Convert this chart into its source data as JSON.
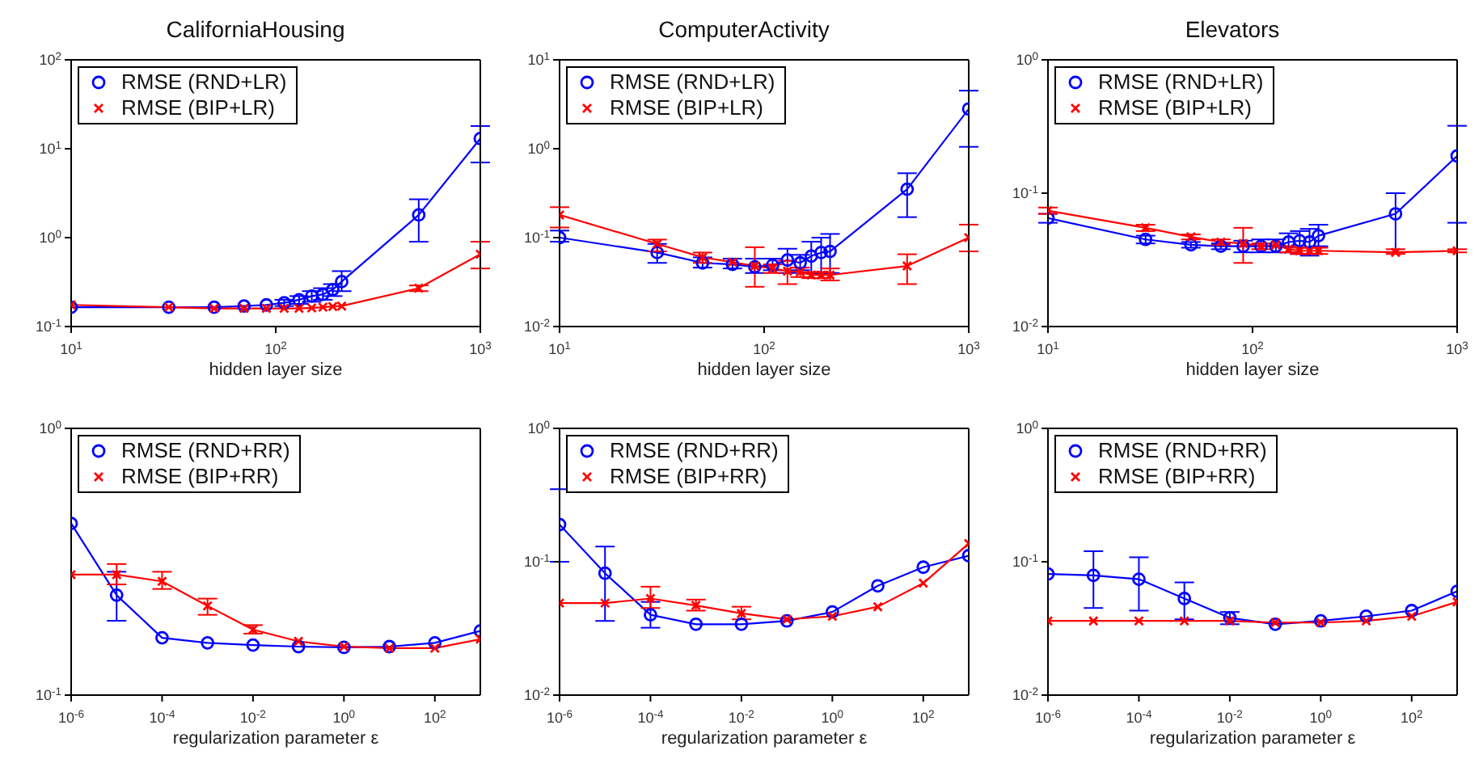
{
  "chart_data": [
    {
      "type": "line",
      "title": "CaliforniaHousing",
      "xlabel": "hidden layer size",
      "log": "xy",
      "legend": "top left",
      "x": [
        10,
        30,
        50,
        70,
        90,
        110,
        130,
        150,
        170,
        190,
        210,
        500,
        1000
      ],
      "xlim": [
        10,
        1000
      ],
      "xticks": [
        {
          "value": 10,
          "label": "10$^{1}$"
        },
        {
          "value": 100,
          "label": "10$^{2}$"
        },
        {
          "value": 1000,
          "label": "10$^{3}$"
        }
      ],
      "ylim": [
        0.1,
        100
      ],
      "yticks": [
        {
          "value": 0.1,
          "label": "10$^{-1}$"
        },
        {
          "value": 1,
          "label": "10$^{0}$"
        },
        {
          "value": 10,
          "label": "10$^{1}$"
        },
        {
          "value": 100,
          "label": "10$^{2}$"
        }
      ],
      "series": [
        {
          "name": "RMSE (RND+LR)",
          "color": "#0000ff",
          "marker": "circle",
          "values": [
            0.165,
            0.165,
            0.165,
            0.17,
            0.175,
            0.185,
            0.2,
            0.22,
            0.23,
            0.26,
            0.32,
            1.8,
            13
          ],
          "errors": [
            null,
            null,
            null,
            null,
            null,
            [
              0.17,
              0.2
            ],
            [
              0.18,
              0.22
            ],
            [
              0.19,
              0.25
            ],
            [
              0.2,
              0.27
            ],
            [
              0.22,
              0.3
            ],
            [
              0.25,
              0.42
            ],
            [
              0.9,
              2.7
            ],
            [
              7,
              18
            ]
          ]
        },
        {
          "name": "RMSE (BIP+LR)",
          "color": "#ff0000",
          "marker": "cross",
          "values": [
            0.175,
            0.165,
            0.16,
            0.16,
            0.16,
            0.16,
            0.16,
            0.162,
            0.165,
            0.168,
            0.17,
            0.27,
            0.65
          ],
          "errors": [
            null,
            null,
            null,
            null,
            null,
            null,
            null,
            null,
            null,
            null,
            null,
            [
              0.25,
              0.29
            ],
            [
              0.45,
              0.9
            ]
          ]
        }
      ]
    },
    {
      "type": "line",
      "title": "ComputerActivity",
      "xlabel": "hidden layer size",
      "log": "xy",
      "legend": "top left",
      "x": [
        10,
        30,
        50,
        70,
        90,
        110,
        130,
        150,
        170,
        190,
        210,
        500,
        1000
      ],
      "xlim": [
        10,
        1000
      ],
      "xticks": [
        {
          "value": 10,
          "label": "10$^{1}$"
        },
        {
          "value": 100,
          "label": "10$^{2}$"
        },
        {
          "value": 1000,
          "label": "10$^{3}$"
        }
      ],
      "ylim": [
        0.01,
        10
      ],
      "yticks": [
        {
          "value": 0.01,
          "label": "10$^{-2}$"
        },
        {
          "value": 0.1,
          "label": "10$^{-1}$"
        },
        {
          "value": 1,
          "label": "10$^{0}$"
        },
        {
          "value": 10,
          "label": "10$^{1}$"
        }
      ],
      "series": [
        {
          "name": "RMSE (RND+LR)",
          "color": "#0000ff",
          "marker": "circle",
          "values": [
            0.1,
            0.068,
            0.052,
            0.05,
            0.047,
            0.049,
            0.056,
            0.052,
            0.062,
            0.068,
            0.07,
            0.35,
            2.8
          ],
          "errors": [
            [
              0.09,
              0.12
            ],
            [
              0.052,
              0.085
            ],
            [
              0.046,
              0.06
            ],
            [
              0.045,
              0.058
            ],
            [
              0.04,
              0.058
            ],
            [
              0.043,
              0.058
            ],
            [
              0.04,
              0.075
            ],
            [
              0.043,
              0.064
            ],
            [
              0.04,
              0.09
            ],
            [
              0.04,
              0.1
            ],
            [
              0.04,
              0.11
            ],
            [
              0.17,
              0.53
            ],
            [
              1.05,
              4.5
            ]
          ]
        },
        {
          "name": "RMSE (BIP+LR)",
          "color": "#ff0000",
          "marker": "cross",
          "values": [
            0.18,
            0.085,
            0.06,
            0.053,
            0.048,
            0.045,
            0.042,
            0.041,
            0.038,
            0.038,
            0.038,
            0.048,
            0.1
          ],
          "errors": [
            [
              0.13,
              0.22
            ],
            [
              0.07,
              0.095
            ],
            [
              0.052,
              0.068
            ],
            null,
            [
              0.028,
              0.078
            ],
            [
              0.04,
              0.05
            ],
            [
              0.03,
              0.055
            ],
            [
              0.036,
              0.046
            ],
            [
              0.035,
              0.041
            ],
            [
              0.035,
              0.041
            ],
            [
              0.033,
              0.045
            ],
            [
              0.03,
              0.065
            ],
            [
              0.07,
              0.14
            ]
          ]
        }
      ]
    },
    {
      "type": "line",
      "title": "Elevators",
      "xlabel": "hidden layer size",
      "log": "xy",
      "legend": "top left",
      "x": [
        10,
        30,
        50,
        70,
        90,
        110,
        130,
        150,
        170,
        190,
        210,
        500,
        1000
      ],
      "xlim": [
        10,
        1000
      ],
      "xticks": [
        {
          "value": 10,
          "label": "10$^{1}$"
        },
        {
          "value": 100,
          "label": "10$^{2}$"
        },
        {
          "value": 1000,
          "label": "10$^{3}$"
        }
      ],
      "ylim": [
        0.01,
        1
      ],
      "yticks": [
        {
          "value": 0.01,
          "label": "10$^{-2}$"
        },
        {
          "value": 0.1,
          "label": "10$^{-1}$"
        },
        {
          "value": 1,
          "label": "10$^{0}$"
        }
      ],
      "series": [
        {
          "name": "RMSE (RND+LR)",
          "color": "#0000ff",
          "marker": "circle",
          "values": [
            0.065,
            0.045,
            0.041,
            0.04,
            0.04,
            0.04,
            0.04,
            0.043,
            0.044,
            0.043,
            0.048,
            0.07,
            0.19
          ],
          "errors": [
            [
              0.06,
              0.07
            ],
            [
              0.042,
              0.048
            ],
            [
              0.039,
              0.043
            ],
            [
              0.038,
              0.042
            ],
            [
              0.036,
              0.044
            ],
            [
              0.036,
              0.045
            ],
            [
              0.036,
              0.045
            ],
            [
              0.036,
              0.05
            ],
            [
              0.035,
              0.052
            ],
            [
              0.034,
              0.054
            ],
            [
              0.04,
              0.058
            ],
            [
              0.036,
              0.1
            ],
            [
              0.06,
              0.32
            ]
          ]
        },
        {
          "name": "RMSE (BIP+LR)",
          "color": "#ff0000",
          "marker": "cross",
          "values": [
            0.074,
            0.055,
            0.047,
            0.043,
            0.042,
            0.04,
            0.041,
            0.038,
            0.037,
            0.037,
            0.037,
            0.036,
            0.037
          ],
          "errors": [
            [
              0.07,
              0.078
            ],
            [
              0.052,
              0.058
            ],
            [
              0.045,
              0.049
            ],
            [
              0.041,
              0.045
            ],
            [
              0.03,
              0.055
            ],
            [
              0.038,
              0.042
            ],
            null,
            [
              0.036,
              0.04
            ],
            [
              0.035,
              0.039
            ],
            [
              0.035,
              0.039
            ],
            [
              0.035,
              0.039
            ],
            [
              0.035,
              0.038
            ],
            [
              0.036,
              0.038
            ]
          ]
        }
      ]
    },
    {
      "type": "line",
      "xlabel": "regularization parameter ε",
      "log": "xy",
      "legend": "top left",
      "x": [
        1e-06,
        1e-05,
        0.0001,
        0.001,
        0.01,
        0.1,
        1,
        10,
        100,
        1000
      ],
      "xlim": [
        1e-06,
        1000
      ],
      "xticks": [
        {
          "value": 1e-06,
          "label": "10$^{-6}$"
        },
        {
          "value": 0.0001,
          "label": "10$^{-4}$"
        },
        {
          "value": 0.01,
          "label": "10$^{-2}$"
        },
        {
          "value": 1,
          "label": "10$^{0}$"
        },
        {
          "value": 100,
          "label": "10$^{2}$"
        }
      ],
      "ylim": [
        0.1,
        1
      ],
      "yticks": [
        {
          "value": 0.1,
          "label": "10$^{-1}$"
        },
        {
          "value": 1,
          "label": "10$^{0}$"
        }
      ],
      "series": [
        {
          "name": "RMSE (RND+RR)",
          "color": "#0000ff",
          "marker": "circle",
          "values": [
            0.44,
            0.237,
            0.164,
            0.157,
            0.154,
            0.152,
            0.151,
            0.152,
            0.157,
            0.174
          ],
          "errors": [
            null,
            [
              0.19,
              0.29
            ],
            null,
            null,
            null,
            null,
            null,
            null,
            null,
            null
          ]
        },
        {
          "name": "RMSE (BIP+RR)",
          "color": "#ff0000",
          "marker": "cross",
          "values": [
            0.283,
            0.283,
            0.267,
            0.216,
            0.176,
            0.159,
            0.152,
            0.15,
            0.15,
            0.162
          ],
          "errors": [
            null,
            [
              0.26,
              0.31
            ],
            [
              0.25,
              0.29
            ],
            [
              0.2,
              0.23
            ],
            [
              0.17,
              0.183
            ],
            null,
            null,
            null,
            null,
            null
          ]
        }
      ]
    },
    {
      "type": "line",
      "xlabel": "regularization parameter ε",
      "log": "xy",
      "legend": "top left",
      "x": [
        1e-06,
        1e-05,
        0.0001,
        0.001,
        0.01,
        0.1,
        1,
        10,
        100,
        1000
      ],
      "xlim": [
        1e-06,
        1000
      ],
      "xticks": [
        {
          "value": 1e-06,
          "label": "10$^{-6}$"
        },
        {
          "value": 0.0001,
          "label": "10$^{-4}$"
        },
        {
          "value": 0.01,
          "label": "10$^{-2}$"
        },
        {
          "value": 1,
          "label": "10$^{0}$"
        },
        {
          "value": 100,
          "label": "10$^{2}$"
        }
      ],
      "ylim": [
        0.01,
        1
      ],
      "yticks": [
        {
          "value": 0.01,
          "label": "10$^{-2}$"
        },
        {
          "value": 0.1,
          "label": "10$^{-1}$"
        },
        {
          "value": 1,
          "label": "10$^{0}$"
        }
      ],
      "series": [
        {
          "name": "RMSE (RND+RR)",
          "color": "#0000ff",
          "marker": "circle",
          "values": [
            0.19,
            0.082,
            0.04,
            0.034,
            0.034,
            0.036,
            0.042,
            0.066,
            0.091,
            0.111
          ],
          "errors": [
            [
              0.1,
              0.35
            ],
            [
              0.036,
              0.13
            ],
            [
              0.032,
              0.05
            ],
            null,
            null,
            null,
            null,
            null,
            null,
            null
          ]
        },
        {
          "name": "RMSE (BIP+RR)",
          "color": "#ff0000",
          "marker": "cross",
          "values": [
            0.049,
            0.049,
            0.053,
            0.047,
            0.041,
            0.037,
            0.039,
            0.046,
            0.069,
            0.137
          ],
          "errors": [
            null,
            null,
            [
              0.045,
              0.065
            ],
            [
              0.043,
              0.052
            ],
            [
              0.037,
              0.046
            ],
            null,
            null,
            null,
            null,
            null
          ]
        }
      ]
    },
    {
      "type": "line",
      "xlabel": "regularization parameter ε",
      "log": "xy",
      "legend": "top left",
      "x": [
        1e-06,
        1e-05,
        0.0001,
        0.001,
        0.01,
        0.1,
        1,
        10,
        100,
        1000
      ],
      "xlim": [
        1e-06,
        1000
      ],
      "xticks": [
        {
          "value": 1e-06,
          "label": "10$^{-6}$"
        },
        {
          "value": 0.0001,
          "label": "10$^{-4}$"
        },
        {
          "value": 0.01,
          "label": "10$^{-2}$"
        },
        {
          "value": 1,
          "label": "10$^{0}$"
        },
        {
          "value": 100,
          "label": "10$^{2}$"
        }
      ],
      "ylim": [
        0.01,
        1
      ],
      "yticks": [
        {
          "value": 0.01,
          "label": "10$^{-2}$"
        },
        {
          "value": 0.1,
          "label": "10$^{-1}$"
        },
        {
          "value": 1,
          "label": "10$^{0}$"
        }
      ],
      "series": [
        {
          "name": "RMSE (RND+RR)",
          "color": "#0000ff",
          "marker": "circle",
          "values": [
            0.081,
            0.079,
            0.074,
            0.053,
            0.038,
            0.034,
            0.036,
            0.039,
            0.043,
            0.06
          ],
          "errors": [
            null,
            [
              0.045,
              0.12
            ],
            [
              0.043,
              0.108
            ],
            [
              0.037,
              0.07
            ],
            [
              0.034,
              0.042
            ],
            null,
            null,
            null,
            null,
            null
          ]
        },
        {
          "name": "RMSE (BIP+RR)",
          "color": "#ff0000",
          "marker": "cross",
          "values": [
            0.036,
            0.036,
            0.036,
            0.036,
            0.036,
            0.035,
            0.035,
            0.036,
            0.039,
            0.05
          ]
        }
      ]
    }
  ]
}
